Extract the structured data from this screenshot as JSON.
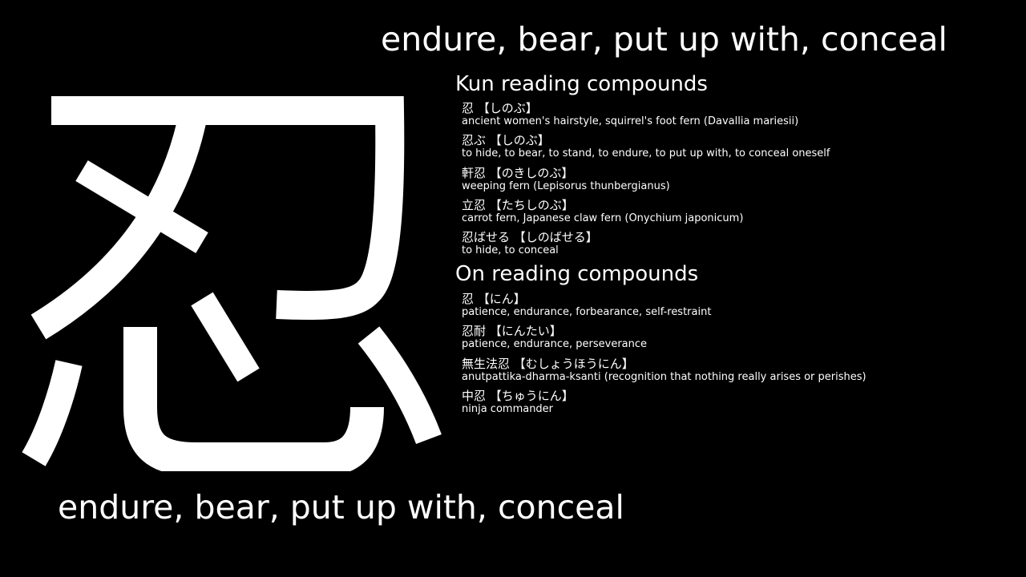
{
  "meaning": "endure, bear, put up with, conceal",
  "kanji": "忍",
  "kun": {
    "heading": "Kun reading compounds",
    "items": [
      {
        "term": "忍 【しのぶ】",
        "meaning": "ancient women's hairstyle, squirrel's foot fern (Davallia mariesii)"
      },
      {
        "term": "忍ぶ 【しのぶ】",
        "meaning": "to hide, to bear, to stand, to endure, to put up with, to conceal oneself"
      },
      {
        "term": "軒忍 【のきしのぶ】",
        "meaning": "weeping fern (Lepisorus thunbergianus)"
      },
      {
        "term": "立忍 【たちしのぶ】",
        "meaning": "carrot fern, Japanese claw fern (Onychium japonicum)"
      },
      {
        "term": "忍ばせる 【しのばせる】",
        "meaning": "to hide, to conceal"
      }
    ]
  },
  "on": {
    "heading": "On reading compounds",
    "items": [
      {
        "term": "忍 【にん】",
        "meaning": "patience, endurance, forbearance, self-restraint"
      },
      {
        "term": "忍耐 【にんたい】",
        "meaning": "patience, endurance, perseverance"
      },
      {
        "term": "無生法忍 【むしょうほうにん】",
        "meaning": "anutpattika-dharma-ksanti (recognition that nothing really arises or perishes)"
      },
      {
        "term": "中忍 【ちゅうにん】",
        "meaning": "ninja commander"
      }
    ]
  }
}
